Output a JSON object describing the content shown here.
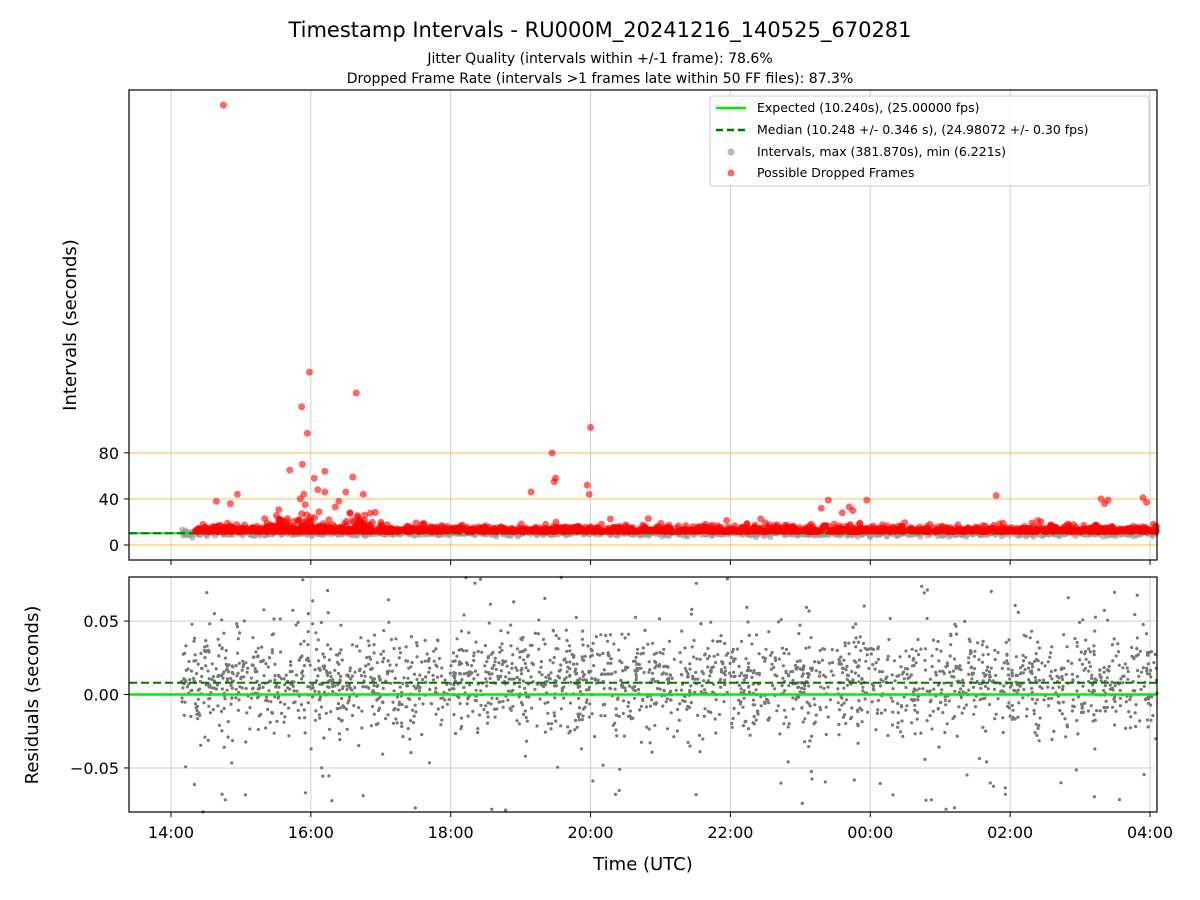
{
  "chart_data": [
    {
      "type": "scatter",
      "title": "Timestamp Intervals - RU000M_20241216_140525_670281",
      "subtitle": [
        "Jitter Quality (intervals within +/-1 frame): 78.6%",
        "Dropped Frame Rate (intervals >1 frames late within 50 FF files): 87.3%"
      ],
      "ylabel": "Intervals (seconds)",
      "xlim_hours": [
        13.4,
        28.1
      ],
      "ylim": [
        -13,
        395
      ],
      "yticks": [
        0,
        40,
        80
      ],
      "ytick_labels": [
        "0",
        "40",
        "80"
      ],
      "reference_lines": [
        0,
        40,
        80
      ],
      "reference_line_color": "#ffa500",
      "grid": "x",
      "legend": "top-right",
      "expected": {
        "label": "Expected (10.240s), (25.00000 fps)",
        "value": 10.24,
        "color": "#00ee00"
      },
      "median": {
        "label": "Median (10.248 +/- 0.346 s), (24.98072 +/- 0.30 fps)",
        "value": 10.248,
        "color": "#007700"
      },
      "intervals": {
        "label": "Intervals, max (381.870s), min (6.221s)",
        "color": "#999999",
        "max": 381.87,
        "min": 6.221
      },
      "dropped": {
        "label": "Possible Dropped Frames",
        "color": "#ff0000",
        "outliers": [
          [
            14.75,
            381.87
          ],
          [
            15.55,
            17
          ],
          [
            15.7,
            65
          ],
          [
            15.85,
            40
          ],
          [
            15.9,
            44
          ],
          [
            15.88,
            70
          ],
          [
            15.95,
            97
          ],
          [
            15.98,
            150
          ],
          [
            15.87,
            120
          ],
          [
            15.92,
            35
          ],
          [
            16.05,
            58
          ],
          [
            16.1,
            48
          ],
          [
            16.2,
            46
          ],
          [
            16.2,
            64
          ],
          [
            16.35,
            33
          ],
          [
            16.4,
            38
          ],
          [
            16.5,
            46
          ],
          [
            16.6,
            59
          ],
          [
            16.65,
            132
          ],
          [
            16.75,
            44
          ],
          [
            14.65,
            38
          ],
          [
            14.85,
            36
          ],
          [
            14.95,
            44
          ],
          [
            16.0,
            24
          ],
          [
            19.15,
            46
          ],
          [
            19.45,
            80
          ],
          [
            19.48,
            55
          ],
          [
            19.5,
            58
          ],
          [
            19.95,
            52
          ],
          [
            19.98,
            44
          ],
          [
            20.0,
            102
          ],
          [
            23.3,
            32
          ],
          [
            23.4,
            39
          ],
          [
            23.6,
            28
          ],
          [
            23.7,
            33
          ],
          [
            23.75,
            30
          ],
          [
            23.95,
            39
          ],
          [
            25.8,
            43
          ],
          [
            25.9,
            19
          ],
          [
            27.3,
            40
          ],
          [
            27.35,
            36
          ],
          [
            27.4,
            39
          ],
          [
            27.9,
            41
          ],
          [
            27.95,
            37
          ],
          [
            28.05,
            18
          ]
        ]
      }
    },
    {
      "type": "scatter",
      "xlabel": "Time (UTC)",
      "ylabel": "Residuals (seconds)",
      "xlim_hours": [
        13.4,
        28.1
      ],
      "ylim": [
        -0.08,
        0.08
      ],
      "yticks": [
        -0.05,
        0.0,
        0.05
      ],
      "ytick_labels": [
        "−0.05",
        "0.00",
        "0.05"
      ],
      "xticks_hours": [
        14,
        16,
        18,
        20,
        22,
        24,
        26,
        28
      ],
      "xtick_labels": [
        "14:00",
        "16:00",
        "18:00",
        "20:00",
        "22:00",
        "00:00",
        "02:00",
        "04:00"
      ],
      "grid": "both",
      "expected_residual": 0.0,
      "median_residual": 0.008,
      "points_color": "#777777"
    }
  ]
}
